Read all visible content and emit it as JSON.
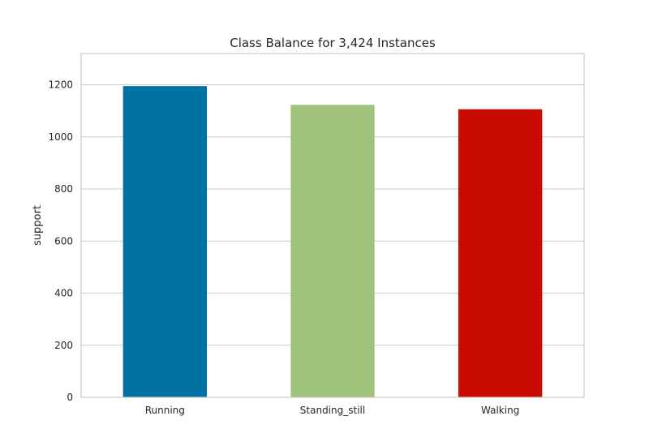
{
  "chart_data": {
    "type": "bar",
    "title": "Class Balance for 3,424 Instances",
    "xlabel": "",
    "ylabel": "support",
    "categories": [
      "Running",
      "Standing_still",
      "Walking"
    ],
    "values": [
      1195,
      1123,
      1106
    ],
    "colors": [
      "#0173a3",
      "#9fc37b",
      "#c90b02"
    ],
    "ylim": [
      0,
      1320
    ],
    "yticks": [
      0,
      200,
      400,
      600,
      800,
      1000,
      1200
    ],
    "grid": true,
    "legend": "none"
  }
}
